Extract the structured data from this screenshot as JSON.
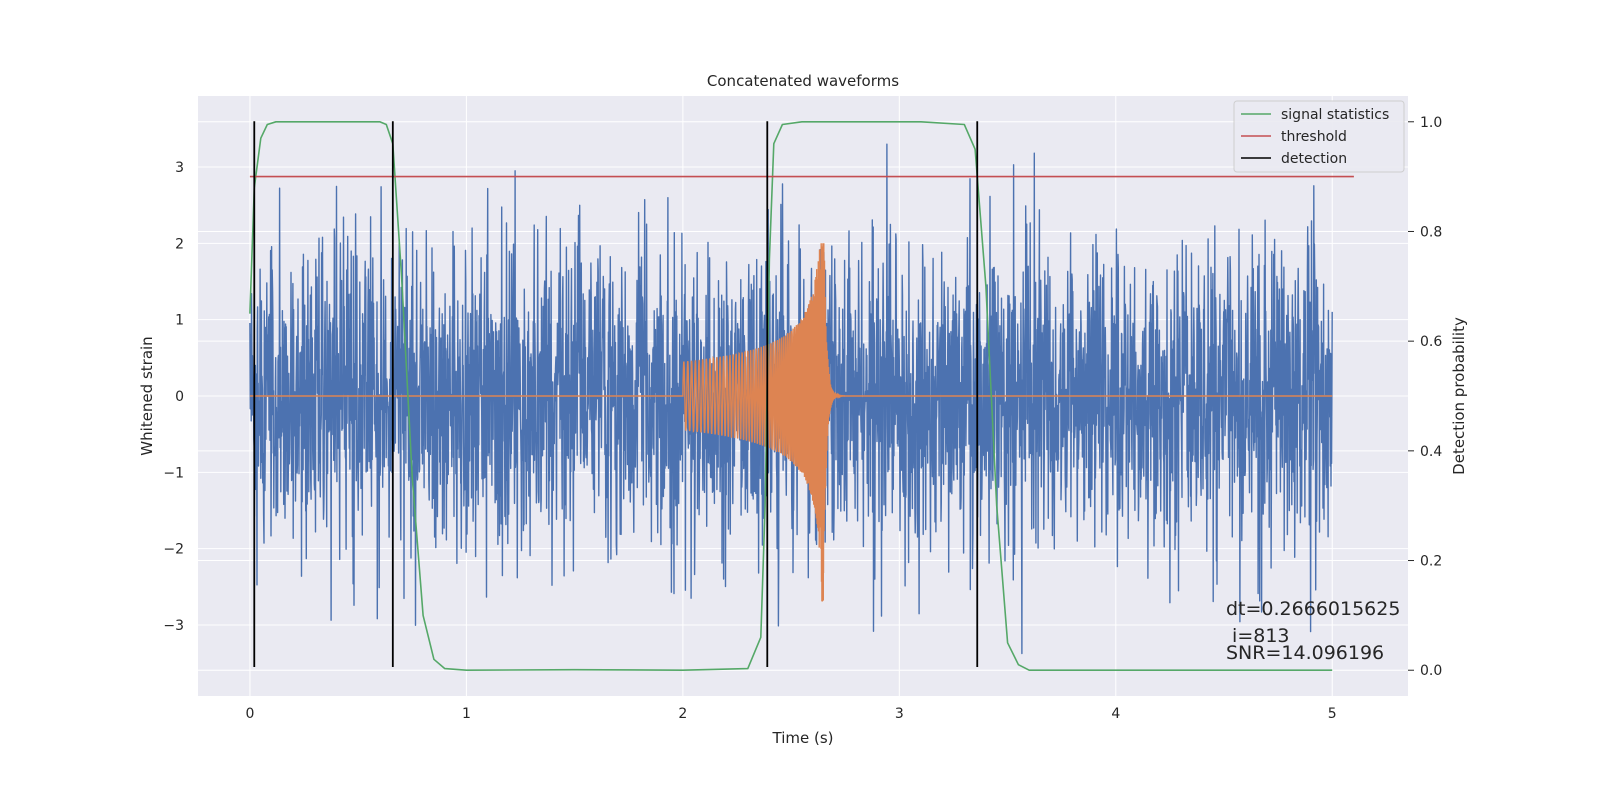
{
  "chart_data": {
    "type": "line",
    "title": "Concatenated waveforms",
    "xlabel": "Time (s)",
    "ylabel": "Whitened strain",
    "y2label": "Detection probability",
    "xlim": [
      -0.24,
      5.35
    ],
    "ylim": [
      -3.93,
      3.93
    ],
    "y2lim": [
      -0.047,
      1.047
    ],
    "xticks": [
      0,
      1,
      2,
      3,
      4,
      5
    ],
    "yticks": [
      -3,
      -2,
      -1,
      0,
      1,
      2,
      3
    ],
    "y2ticks": [
      0.0,
      0.2,
      0.4,
      0.6,
      0.8,
      1.0
    ],
    "xtick_labels": [
      "0",
      "1",
      "2",
      "3",
      "4",
      "5"
    ],
    "ytick_labels": [
      "−3",
      "−2",
      "−1",
      "0",
      "1",
      "2",
      "3"
    ],
    "y2tick_labels": [
      "0.0",
      "0.2",
      "0.4",
      "0.6",
      "0.8",
      "1.0"
    ],
    "grid": true,
    "legend_position": "top-right",
    "noise": {
      "axis": "left",
      "color": "#4c72b0",
      "x_range": [
        0,
        5
      ],
      "typical_amplitude": 1.0,
      "max_abs": 3.6
    },
    "chirp": {
      "axis": "left",
      "color": "#dd8452",
      "start": 2.0,
      "merger": 2.65,
      "ringdown_end": 2.9,
      "start_amplitude": 0.45,
      "peak_amplitude": 2.0,
      "min_value": -2.8
    },
    "series": [
      {
        "name": "signal statistics",
        "axis": "right",
        "color": "#55a868",
        "x": [
          0,
          0.02,
          0.05,
          0.08,
          0.12,
          0.2,
          0.4,
          0.6,
          0.63,
          0.66,
          0.7,
          0.75,
          0.8,
          0.85,
          0.9,
          1.0,
          1.5,
          2.0,
          2.3,
          2.36,
          2.38,
          2.4,
          2.42,
          2.46,
          2.55,
          2.8,
          3.1,
          3.3,
          3.35,
          3.4,
          3.45,
          3.5,
          3.55,
          3.6,
          4.0,
          5.0
        ],
        "y": [
          0.65,
          0.88,
          0.97,
          0.995,
          1.0,
          1.0,
          1.0,
          1.0,
          0.995,
          0.96,
          0.72,
          0.35,
          0.1,
          0.02,
          0.003,
          0.0,
          0.001,
          0.0,
          0.003,
          0.06,
          0.3,
          0.75,
          0.96,
          0.995,
          1.0,
          1.0,
          1.0,
          0.995,
          0.95,
          0.7,
          0.3,
          0.05,
          0.01,
          0.0,
          0.0,
          0.0
        ]
      },
      {
        "name": "threshold",
        "axis": "right",
        "color": "#c44e52",
        "x": [
          0,
          5.1
        ],
        "y": [
          0.9,
          0.9
        ]
      }
    ],
    "detections": {
      "name": "detection",
      "color": "#000000",
      "x": [
        0.02,
        0.66,
        2.39,
        3.36
      ],
      "y_range": [
        -3.55,
        3.6
      ]
    },
    "annotation": {
      "x": 4.5,
      "y": -3.45,
      "lines": [
        "dt=0.2666015625",
        " i=813",
        "SNR=14.096196"
      ]
    }
  }
}
